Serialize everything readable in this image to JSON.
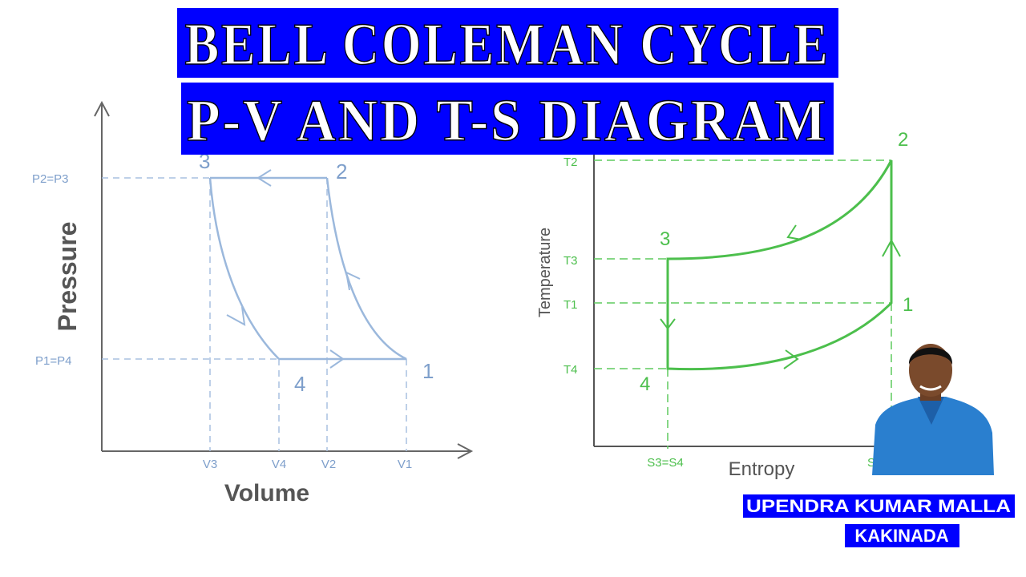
{
  "header": {
    "title_line1": "BELL COLEMAN CYCLE",
    "title_line2": "P-V AND T-S DIAGRAM"
  },
  "pv_diagram": {
    "y_label": "Pressure",
    "x_label": "Volume",
    "pressure_labels": [
      "P2=P3",
      "P1=P4"
    ],
    "volume_labels": [
      "V3",
      "V4",
      "V2",
      "V1"
    ],
    "points": [
      "1",
      "2",
      "3",
      "4"
    ]
  },
  "ts_diagram": {
    "y_label": "Temperature",
    "x_label": "Entropy",
    "temperature_labels": [
      "T2",
      "T3",
      "T1",
      "T4"
    ],
    "entropy_labels": [
      "S3=S4",
      "S"
    ],
    "points": [
      "1",
      "2",
      "3",
      "4"
    ]
  },
  "author": {
    "name": "UPENDRA KUMAR MALLA",
    "place": "KAKINADA"
  }
}
